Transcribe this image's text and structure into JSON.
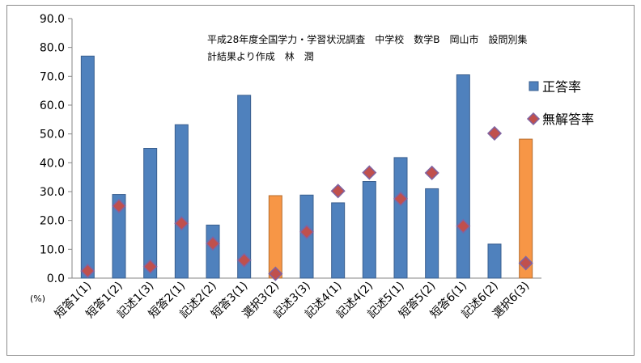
{
  "chart_data": {
    "type": "bar",
    "title_lines": [
      "平成28年度全国学力・学習状況調査　中学校　数学B　岡山市　設問別集",
      "計結果より作成　林　潤"
    ],
    "unit_label": "(%)",
    "ylim": [
      0,
      90
    ],
    "yticks": [
      "0.0",
      "10.0",
      "20.0",
      "30.0",
      "40.0",
      "50.0",
      "60.0",
      "70.0",
      "80.0",
      "90.0"
    ],
    "categories": [
      "短答1(1)",
      "短答1(2)",
      "記述1(3)",
      "短答2(1)",
      "記述2(2)",
      "短答3(1)",
      "選択3(2)",
      "記述3(3)",
      "記述4(1)",
      "記述4(2)",
      "記述5(1)",
      "短答5(2)",
      "短答6(1)",
      "記述6(2)",
      "選択6(3)"
    ],
    "series": [
      {
        "name": "正答率",
        "kind": "bar",
        "values": [
          77.0,
          29.0,
          45.0,
          53.2,
          18.4,
          63.4,
          28.6,
          28.8,
          26.1,
          33.5,
          41.8,
          31.0,
          70.5,
          11.8,
          48.2
        ]
      },
      {
        "name": "無解答率",
        "kind": "marker",
        "values": [
          2.5,
          25.0,
          4.0,
          19.0,
          12.0,
          6.2,
          1.5,
          16.0,
          30.2,
          36.6,
          27.5,
          36.5,
          18.0,
          50.2,
          5.2
        ]
      }
    ],
    "colors": {
      "bar_default": "#4f81bd",
      "bar_default_stroke": "#3a5f8f",
      "bar_highlight": "#f79646",
      "bar_highlight_stroke": "#b66d2f",
      "marker_fill": "#c0504d",
      "marker_stroke": "#8064a2"
    },
    "highlighted_categories": [
      "選択3(2)",
      "選択6(3)"
    ],
    "grid": false,
    "legend_position": "right"
  }
}
